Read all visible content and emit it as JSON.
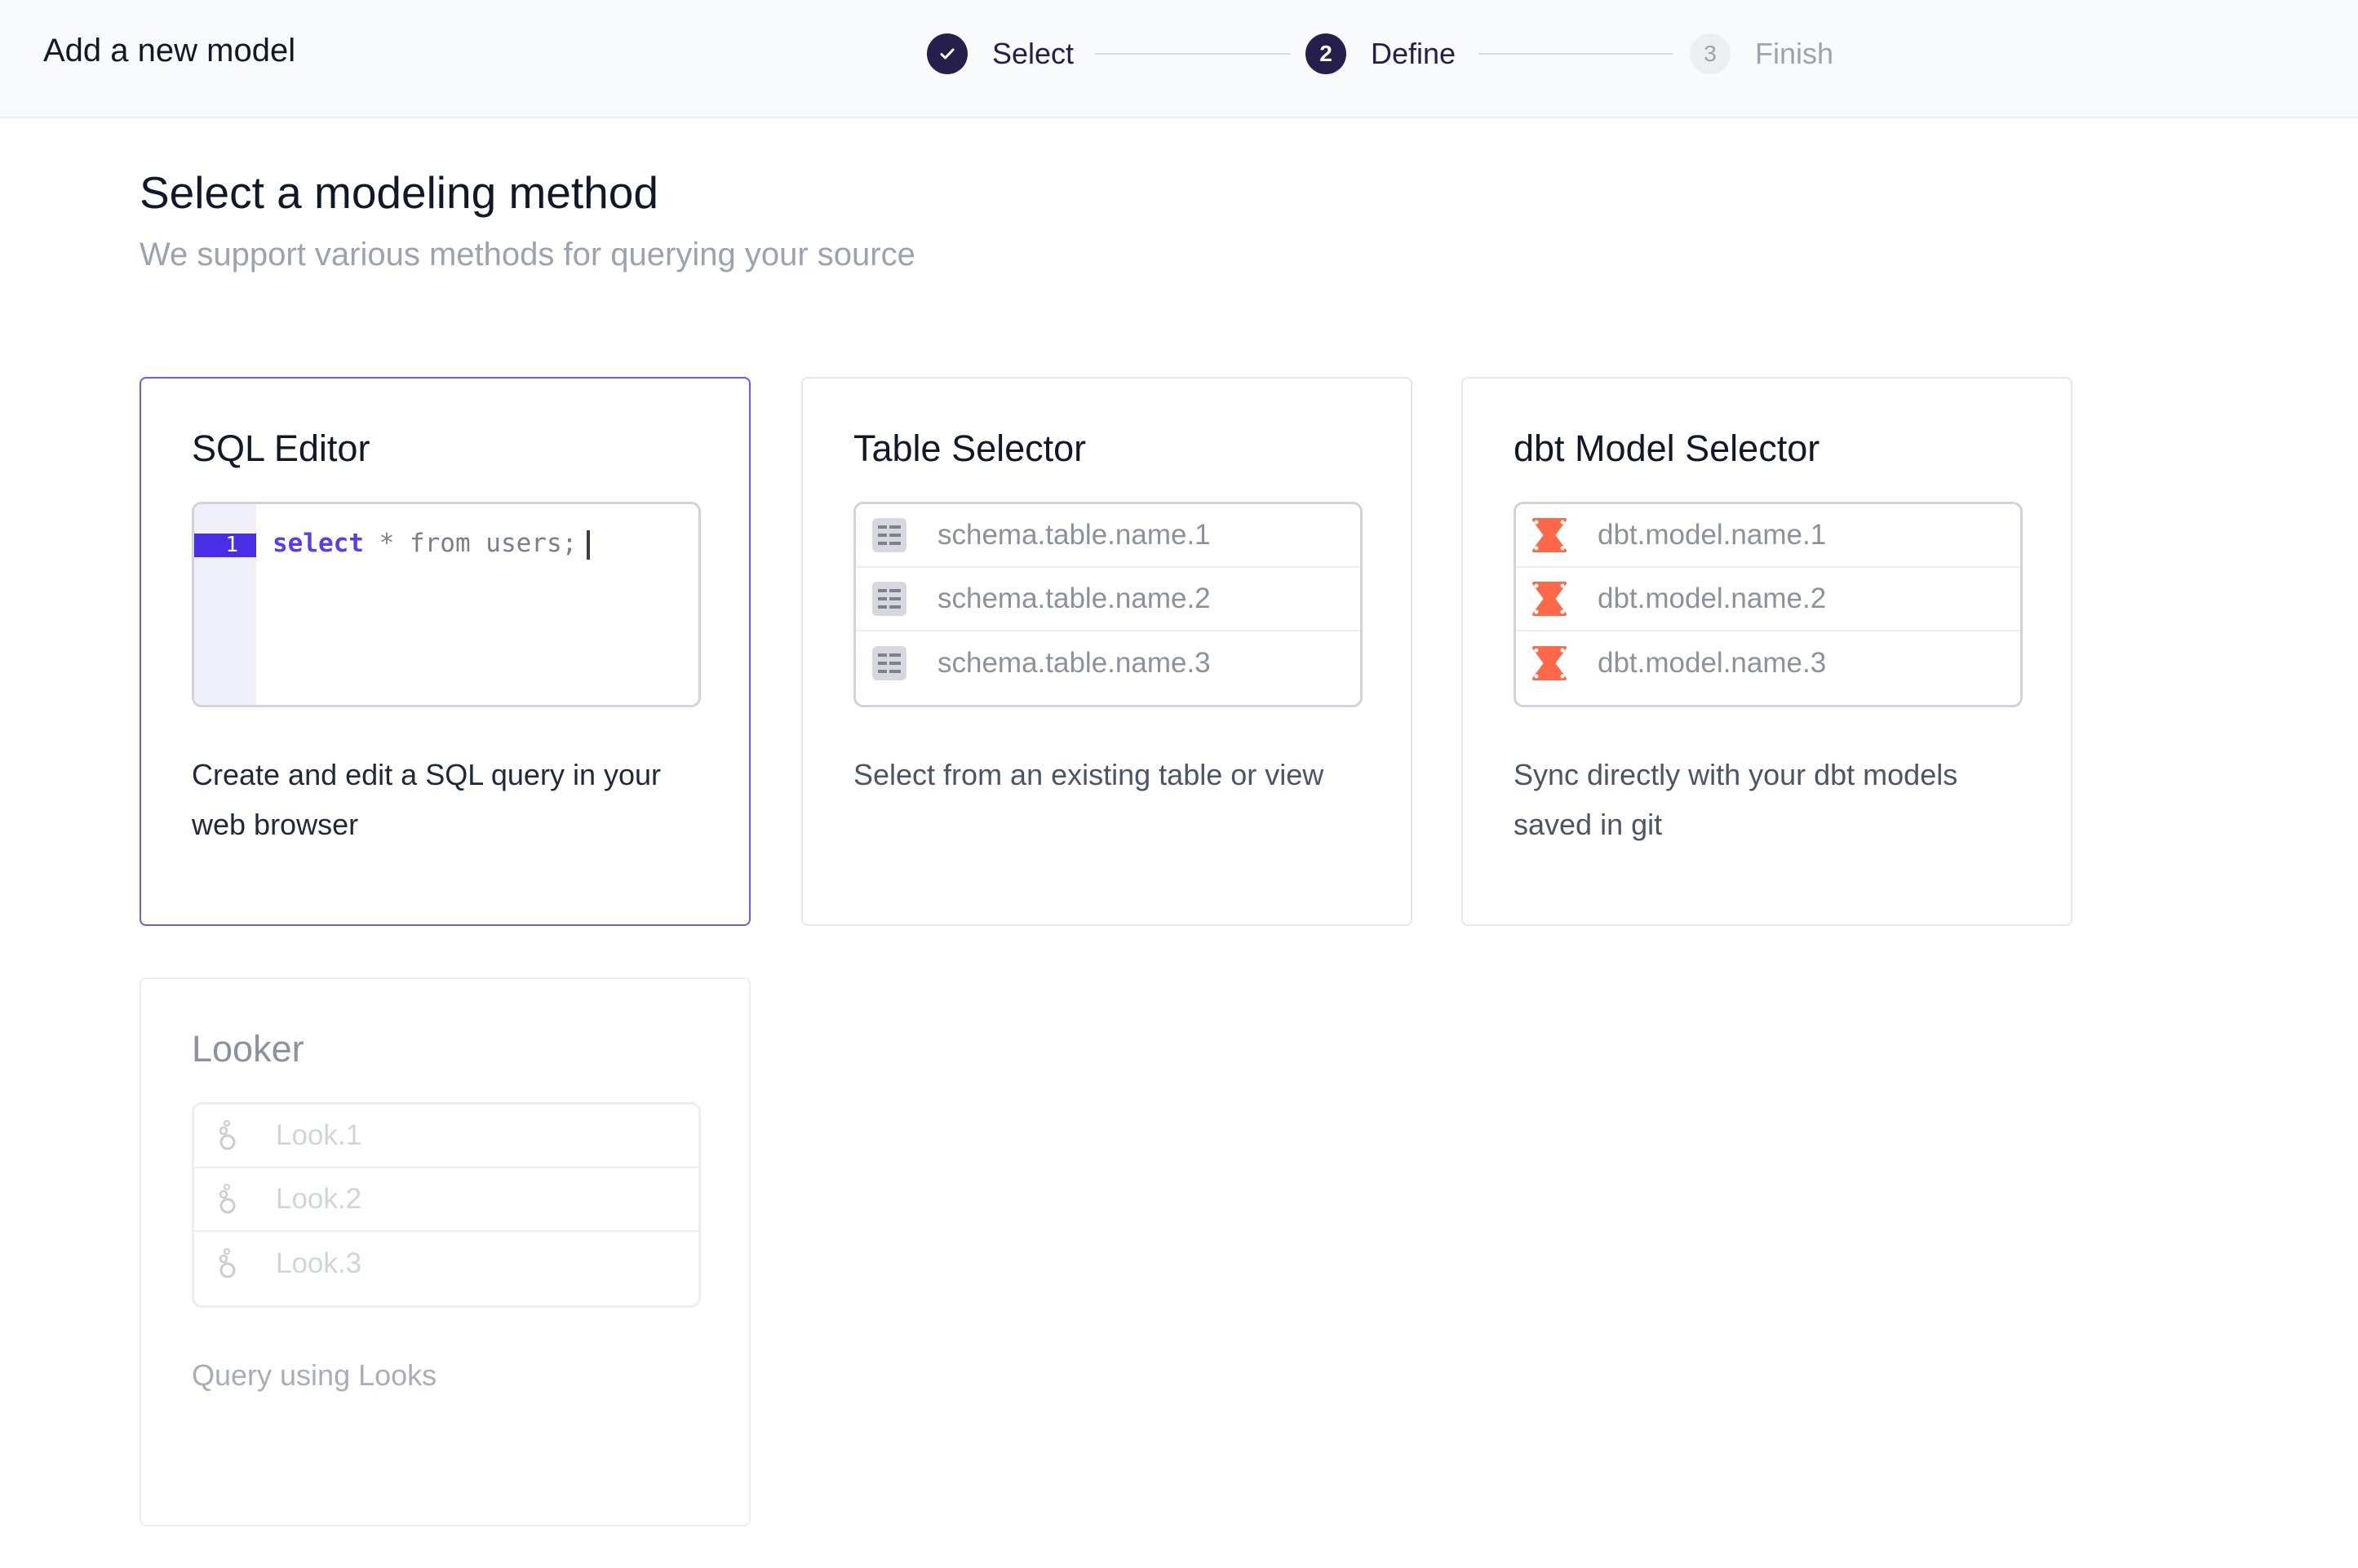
{
  "header": {
    "title": "Add a new model",
    "steps": [
      {
        "label": "Select",
        "state": "done",
        "icon": "check-icon"
      },
      {
        "label": "Define",
        "number": "2",
        "state": "active"
      },
      {
        "label": "Finish",
        "number": "3",
        "state": "todo"
      }
    ]
  },
  "main": {
    "title": "Select a modeling method",
    "subtitle": "We support various methods for querying your source",
    "cards": [
      {
        "title": "SQL Editor",
        "line_number": "1",
        "code_keyword": "select",
        "code_rest": " * from users;",
        "description": "Create and edit a SQL query in your web browser",
        "selected": true
      },
      {
        "title": "Table Selector",
        "icon": "table-icon",
        "items": [
          "schema.table.name.1",
          "schema.table.name.2",
          "schema.table.name.3"
        ],
        "description": "Select from an existing table or view"
      },
      {
        "title": "dbt Model Selector",
        "icon": "dbt-icon",
        "icon_color": "#ff6849",
        "items": [
          "dbt.model.name.1",
          "dbt.model.name.2",
          "dbt.model.name.3"
        ],
        "description": "Sync directly with your dbt models saved in git"
      },
      {
        "title": "Looker",
        "icon": "looker-icon",
        "items": [
          "Look.1",
          "Look.2",
          "Look.3"
        ],
        "description": "Query using Looks",
        "disabled": true
      }
    ]
  },
  "colors": {
    "accent": "#4a2ee6",
    "selected_border": "#6b5cf0",
    "stepper": "#24204b"
  }
}
